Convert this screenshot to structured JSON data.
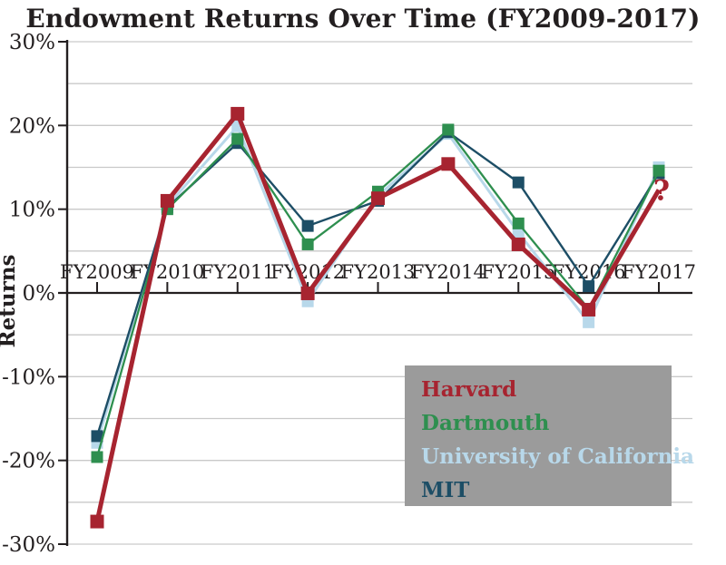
{
  "title": "Endowment Returns Over Time (FY2009-2017)",
  "chart_data": {
    "type": "line",
    "title": "Endowment Returns Over Time (FY2009-2017)",
    "xlabel": "",
    "ylabel": "Returns",
    "x_categories": [
      "FY2009",
      "FY2010",
      "FY2011",
      "FY2012",
      "FY2013",
      "FY2014",
      "FY2015",
      "FY2016",
      "FY2017"
    ],
    "ylim": [
      -30,
      30
    ],
    "y_tick_labels": [
      "30%",
      "20%",
      "10%",
      "0%",
      "-10%",
      "-20%",
      "-30%"
    ],
    "y_major_ticks": [
      30,
      20,
      10,
      0,
      -10,
      -20,
      -30
    ],
    "gridline_step_pct": 5,
    "grid_on": true,
    "series": [
      {
        "name": "Harvard",
        "color": "#a72430",
        "marker": "square",
        "line_width": 5,
        "values": [
          -27.3,
          11.0,
          21.4,
          -0.05,
          11.3,
          15.4,
          5.8,
          -2.0,
          null
        ],
        "projected_end": {
          "x_index": 8,
          "value": 12.3
        },
        "annotation": {
          "text": "?",
          "x_index": 8,
          "value": 12.3
        }
      },
      {
        "name": "Dartmouth",
        "color": "#2e8f4f",
        "marker": "square",
        "line_width": 2.3,
        "values": [
          -19.6,
          10.0,
          18.4,
          5.8,
          12.1,
          19.5,
          8.3,
          -1.9,
          14.6
        ]
      },
      {
        "name": "University of California",
        "color": "#b8d8ea",
        "marker": "square",
        "line_width": 3,
        "values": [
          -17.9,
          10.4,
          19.9,
          -1.0,
          11.6,
          19.0,
          7.2,
          -3.5,
          15.0
        ]
      },
      {
        "name": "MIT",
        "color": "#1d4e66",
        "marker": "square",
        "line_width": 2.4,
        "values": [
          -17.1,
          10.2,
          17.9,
          8.0,
          11.0,
          19.2,
          13.2,
          0.8,
          14.3
        ]
      }
    ],
    "draw_order": [
      2,
      3,
      1,
      0
    ],
    "legend": {
      "position": "inside-bottom-right",
      "bg_color": "#9b9b9b",
      "entries": [
        "Harvard",
        "Dartmouth",
        "University of California",
        "MIT"
      ]
    },
    "colors": {
      "axis": "#231f20",
      "gridline": "#c9c9c9",
      "text": "#231f20"
    }
  }
}
